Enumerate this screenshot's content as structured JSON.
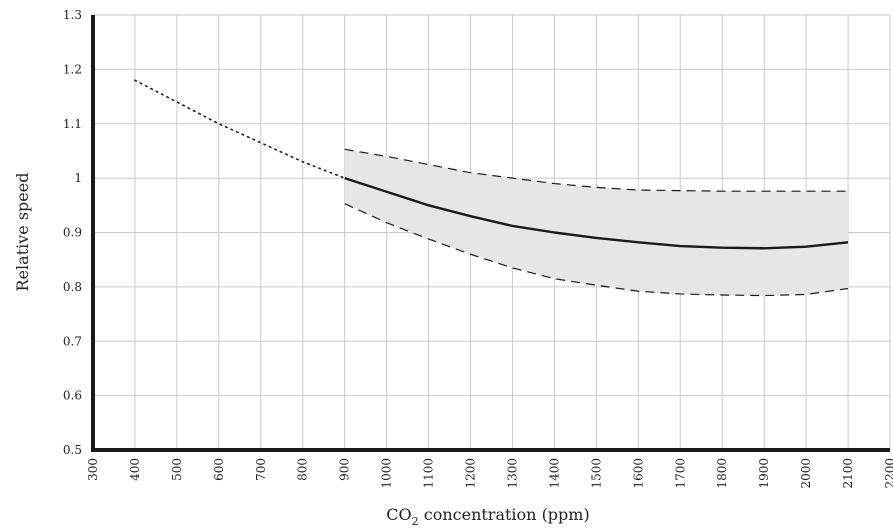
{
  "chart_data": {
    "type": "line",
    "title": "",
    "xlabel": "CO",
    "xlabel_sub": "2",
    "xlabel_suffix": " concentration (ppm)",
    "ylabel": "Relative speed",
    "xlim": [
      300,
      2200
    ],
    "ylim": [
      0.5,
      1.3
    ],
    "xticks": [
      300,
      400,
      500,
      600,
      700,
      800,
      900,
      1000,
      1100,
      1200,
      1300,
      1400,
      1500,
      1600,
      1700,
      1800,
      1900,
      2000,
      2100,
      2200
    ],
    "yticks": [
      0.5,
      0.6,
      0.7,
      0.8,
      0.9,
      1,
      1.1,
      1.2,
      1.3
    ],
    "ytick_labels": [
      "0.5",
      "0.6",
      "0.7",
      "0.8",
      "0.9",
      "1",
      "1.1",
      "1.2",
      "1.3"
    ],
    "grid": true,
    "series": [
      {
        "style": "dotted",
        "x": [
          400,
          500,
          600,
          700,
          800,
          900
        ],
        "y": [
          1.18,
          1.14,
          1.1,
          1.065,
          1.03,
          1.0
        ]
      },
      {
        "style": "solid",
        "x": [
          900,
          1000,
          1100,
          1200,
          1300,
          1400,
          1500,
          1600,
          1700,
          1800,
          1900,
          2000,
          2100
        ],
        "y": [
          1.0,
          0.975,
          0.95,
          0.93,
          0.912,
          0.9,
          0.89,
          0.882,
          0.875,
          0.872,
          0.871,
          0.874,
          0.882
        ]
      },
      {
        "style": "dashed",
        "x": [
          900,
          1000,
          1100,
          1200,
          1300,
          1400,
          1500,
          1600,
          1700,
          1800,
          1900,
          2000,
          2100
        ],
        "y": [
          1.053,
          1.04,
          1.025,
          1.01,
          1.0,
          0.99,
          0.983,
          0.978,
          0.977,
          0.976,
          0.976,
          0.976,
          0.976
        ]
      },
      {
        "style": "dashed",
        "x": [
          900,
          1000,
          1100,
          1200,
          1300,
          1400,
          1500,
          1600,
          1700,
          1800,
          1900,
          2000,
          2100
        ],
        "y": [
          0.953,
          0.918,
          0.888,
          0.86,
          0.835,
          0.815,
          0.803,
          0.792,
          0.787,
          0.785,
          0.784,
          0.786,
          0.797
        ]
      }
    ],
    "band": {
      "x": [
        900,
        1000,
        1100,
        1200,
        1300,
        1400,
        1500,
        1600,
        1700,
        1800,
        1900,
        2000,
        2100
      ],
      "upper": [
        1.053,
        1.04,
        1.025,
        1.01,
        1.0,
        0.99,
        0.983,
        0.978,
        0.977,
        0.976,
        0.976,
        0.976,
        0.976
      ],
      "lower": [
        0.953,
        0.918,
        0.888,
        0.86,
        0.835,
        0.815,
        0.803,
        0.792,
        0.787,
        0.785,
        0.784,
        0.786,
        0.797
      ],
      "fill": "#e6e6e6"
    },
    "colors": {
      "line": "#1a1a1a",
      "axis": "#1a1a1a",
      "grid": "#c9c9c9"
    }
  }
}
